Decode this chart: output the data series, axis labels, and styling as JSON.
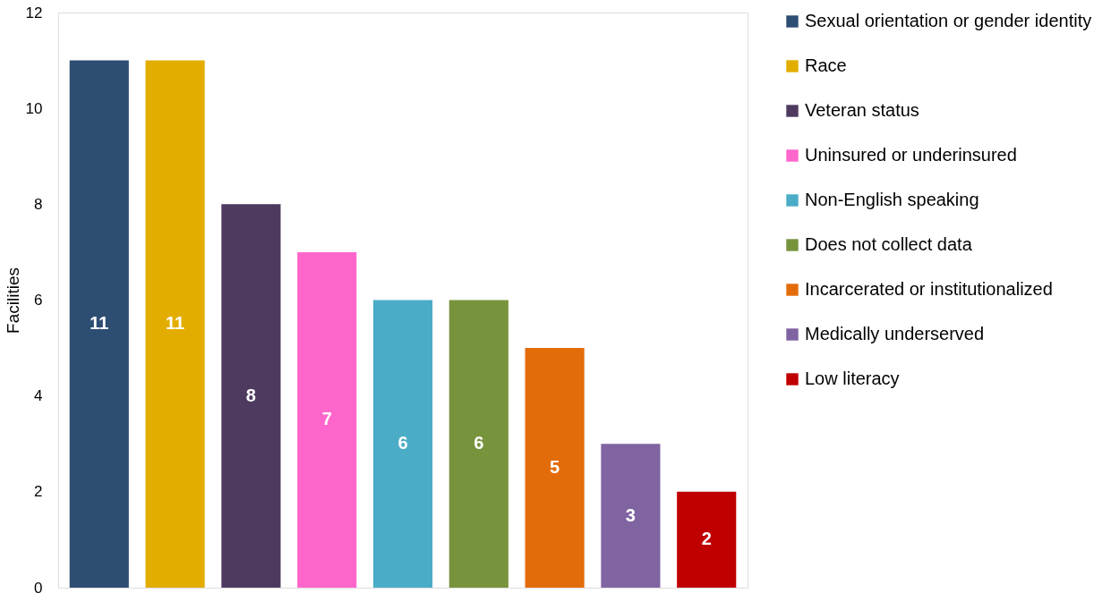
{
  "chart_data": {
    "type": "bar",
    "ylabel": "Facilities",
    "categories": [
      null,
      null,
      null,
      null,
      null,
      null,
      null,
      null,
      null
    ],
    "series": [
      {
        "name": "Sexual orientation or gender identity",
        "color": "#2e4d73",
        "values": [
          11,
          null,
          null,
          null,
          null,
          null,
          null,
          null,
          null
        ]
      },
      {
        "name": "Race",
        "color": "#e3ad00",
        "values": [
          null,
          11,
          null,
          null,
          null,
          null,
          null,
          null,
          null
        ]
      },
      {
        "name": "Veteran status",
        "color": "#4e3a5e",
        "values": [
          null,
          null,
          8,
          null,
          null,
          null,
          null,
          null,
          null
        ]
      },
      {
        "name": "Uninsured or underinsured",
        "color": "#ff66cc",
        "values": [
          null,
          null,
          null,
          7,
          null,
          null,
          null,
          null,
          null
        ]
      },
      {
        "name": "Non-English speaking",
        "color": "#4aacc6",
        "values": [
          null,
          null,
          null,
          null,
          6,
          null,
          null,
          null,
          null
        ]
      },
      {
        "name": "Does not collect data",
        "color": "#77933c",
        "values": [
          null,
          null,
          null,
          null,
          null,
          6,
          null,
          null,
          null
        ]
      },
      {
        "name": "Incarcerated or institutionalized",
        "color": "#e36c0a",
        "values": [
          null,
          null,
          null,
          null,
          null,
          null,
          5,
          null,
          null
        ]
      },
      {
        "name": "Medically underserved",
        "color": "#8064a2",
        "values": [
          null,
          null,
          null,
          null,
          null,
          null,
          null,
          3,
          null
        ]
      },
      {
        "name": "Low literacy",
        "color": "#c00000",
        "values": [
          null,
          null,
          null,
          null,
          null,
          null,
          null,
          null,
          2
        ]
      }
    ],
    "stacked": true,
    "ylim": [
      0,
      12
    ],
    "yticks": [
      0,
      2,
      4,
      6,
      8,
      10,
      12
    ],
    "data_labels": true,
    "legend": "right",
    "grid": false,
    "tick_labels": "y"
  }
}
